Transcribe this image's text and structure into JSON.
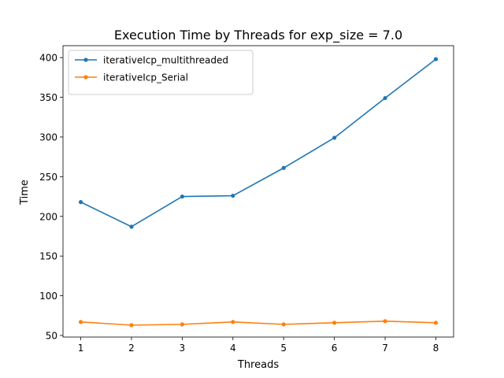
{
  "chart_data": {
    "type": "line",
    "title": "Execution Time by Threads for exp_size = 7.0",
    "xlabel": "Threads",
    "ylabel": "Time",
    "x": [
      1,
      2,
      3,
      4,
      5,
      6,
      7,
      8
    ],
    "xlim": [
      0.65,
      8.35
    ],
    "ylim": [
      48,
      415
    ],
    "xticks": [
      "1",
      "2",
      "3",
      "4",
      "5",
      "6",
      "7",
      "8"
    ],
    "yticks": [
      "50",
      "100",
      "150",
      "200",
      "250",
      "300",
      "350",
      "400"
    ],
    "grid": false,
    "legend_position": "upper-left",
    "series": [
      {
        "name": "iterativeIcp_multithreaded",
        "color": "#1f77b4",
        "values": [
          218,
          187,
          225,
          226,
          261,
          299,
          349,
          398
        ]
      },
      {
        "name": "iterativeIcp_Serial",
        "color": "#ff7f0e",
        "values": [
          67,
          63,
          64,
          67,
          64,
          66,
          68,
          66
        ]
      }
    ]
  }
}
